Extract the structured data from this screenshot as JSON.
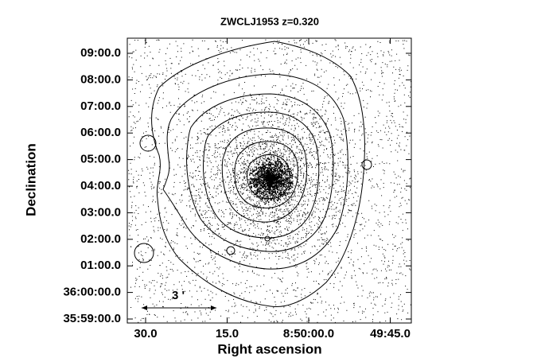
{
  "figure": {
    "title": "ZWCLJ1953 z=0.320",
    "xlabel": "Right ascension",
    "ylabel": "Declination",
    "xticks": [
      "30.0",
      "15.0",
      "8:50:00.0",
      "49:45.0"
    ],
    "yticks": [
      "09:00.0",
      "08:00.0",
      "07:00.0",
      "06:00.0",
      "05:00.0",
      "04:00.0",
      "03:00.0",
      "02:00.0",
      "01:00.0",
      "36:00:00.0",
      "35:59:00.0"
    ],
    "scale_label": "3 '"
  }
}
